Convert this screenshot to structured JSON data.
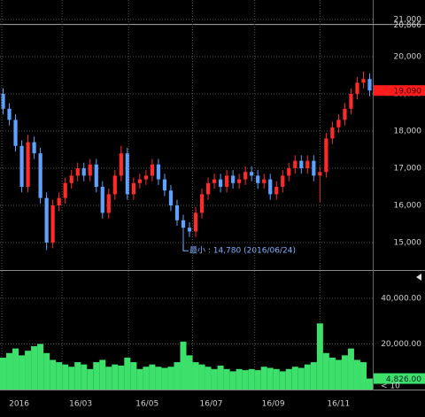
{
  "chart_data": [
    {
      "type": "candlestick",
      "open": [
        19000,
        18600,
        18300,
        17600,
        16500,
        17700,
        17400,
        16200,
        15000,
        16000,
        16200,
        16600,
        16800,
        17000,
        16800,
        17100,
        16500,
        15800,
        16300,
        16800,
        17400,
        16300,
        16600,
        16700,
        16800,
        17100,
        16700,
        16400,
        16000,
        15600,
        15400,
        15300,
        15800,
        16300,
        16600,
        16700,
        16500,
        16800,
        16600,
        16700,
        16900,
        16800,
        16600,
        16700,
        16300,
        16500,
        16800,
        17000,
        17200,
        17000,
        17200,
        16800,
        16900,
        17800,
        18100,
        18300,
        18600,
        19000,
        19300,
        19400
      ],
      "high": [
        19150,
        18750,
        18450,
        17750,
        17900,
        17850,
        17550,
        16350,
        16150,
        16350,
        16750,
        16950,
        17150,
        17150,
        17250,
        17250,
        16650,
        16450,
        16950,
        17600,
        17550,
        16750,
        16850,
        16950,
        17250,
        17250,
        16850,
        16550,
        16150,
        15750,
        15550,
        15950,
        16450,
        16750,
        16850,
        16850,
        16950,
        16950,
        16850,
        17050,
        17050,
        16950,
        16850,
        16850,
        16650,
        16950,
        17150,
        17350,
        17350,
        17350,
        17350,
        17050,
        17950,
        18250,
        18450,
        18750,
        19150,
        19450,
        19600,
        19550
      ],
      "low": [
        18450,
        18150,
        17450,
        16350,
        16350,
        17250,
        16050,
        14800,
        14850,
        15850,
        16050,
        16450,
        16650,
        16650,
        16650,
        16350,
        15650,
        15650,
        16150,
        16650,
        16150,
        16150,
        16450,
        16550,
        16650,
        16550,
        16250,
        15850,
        15450,
        14780,
        15150,
        15150,
        15650,
        16150,
        16450,
        16350,
        16350,
        16450,
        16450,
        16550,
        16650,
        16450,
        16450,
        16150,
        16150,
        16350,
        16650,
        16850,
        16850,
        16850,
        16650,
        16100,
        16750,
        17650,
        17950,
        18150,
        18450,
        18850,
        19150,
        18940
      ],
      "close": [
        18600,
        18300,
        17600,
        16500,
        17700,
        17400,
        16200,
        15000,
        16000,
        16200,
        16600,
        16800,
        17000,
        16800,
        17100,
        16500,
        15800,
        16300,
        16800,
        17400,
        16300,
        16600,
        16700,
        16800,
        17100,
        16700,
        16400,
        16000,
        15600,
        15400,
        15300,
        15800,
        16300,
        16600,
        16700,
        16500,
        16800,
        16600,
        16700,
        16900,
        16800,
        16600,
        16700,
        16300,
        16500,
        16800,
        17000,
        17200,
        17000,
        17200,
        16800,
        16900,
        17800,
        18100,
        18300,
        18600,
        19000,
        19300,
        19400,
        19090
      ],
      "up_color": "#ff2b2b",
      "down_color": "#5ea2ff",
      "xlim": [
        0,
        60
      ],
      "ylim": [
        14262,
        21524
      ],
      "yticks": [
        {
          "value": 15000,
          "label": "15,000"
        },
        {
          "value": 16000,
          "label": "16,000"
        },
        {
          "value": 17000,
          "label": "17,000"
        },
        {
          "value": 18000,
          "label": "18,000"
        },
        {
          "value": 19000,
          "label": "19,000"
        },
        {
          "value": 20000,
          "label": "20,000"
        },
        {
          "value": 21000,
          "label": "21,000"
        }
      ],
      "grid": true,
      "reference_line": {
        "value": 20866,
        "label": "20,866"
      },
      "last_value": {
        "value": 19090,
        "label": "19,090"
      },
      "annotation": {
        "value": 14780,
        "text": "最小 : 14,780 (2016/06/24)"
      }
    },
    {
      "type": "bar",
      "values": [
        14000,
        16000,
        18000,
        15000,
        17000,
        19000,
        20000,
        16000,
        13000,
        12000,
        11000,
        10000,
        12000,
        11000,
        9000,
        12000,
        13000,
        10000,
        11000,
        10500,
        14000,
        12000,
        9000,
        10000,
        11000,
        10000,
        9500,
        10000,
        12000,
        21000,
        15000,
        12000,
        11000,
        10000,
        9000,
        10500,
        9000,
        8000,
        9000,
        8500,
        9000,
        8500,
        10000,
        9500,
        9000,
        8000,
        9000,
        10000,
        9500,
        11000,
        12000,
        29000,
        16000,
        14000,
        13000,
        15000,
        18000,
        13000,
        12000,
        4826
      ],
      "color": "#3ee06c",
      "xlim": [
        0,
        60
      ],
      "ylim": [
        0,
        52000
      ],
      "yticks": [
        {
          "value": 20000,
          "label": "20,000.00"
        },
        {
          "value": 40000,
          "label": "40,000.00"
        }
      ],
      "xticks": [
        {
          "value": 0.3,
          "label": "2016"
        },
        {
          "value": 10,
          "label": "16/03"
        },
        {
          "value": 20.7,
          "label": "16/05"
        },
        {
          "value": 31,
          "label": "16/07"
        },
        {
          "value": 41,
          "label": "16/09"
        },
        {
          "value": 51.5,
          "label": "16/11"
        }
      ],
      "grid": true,
      "last_value": {
        "value": 4826,
        "label": "4,826.00"
      },
      "period_label": "< 10"
    }
  ]
}
